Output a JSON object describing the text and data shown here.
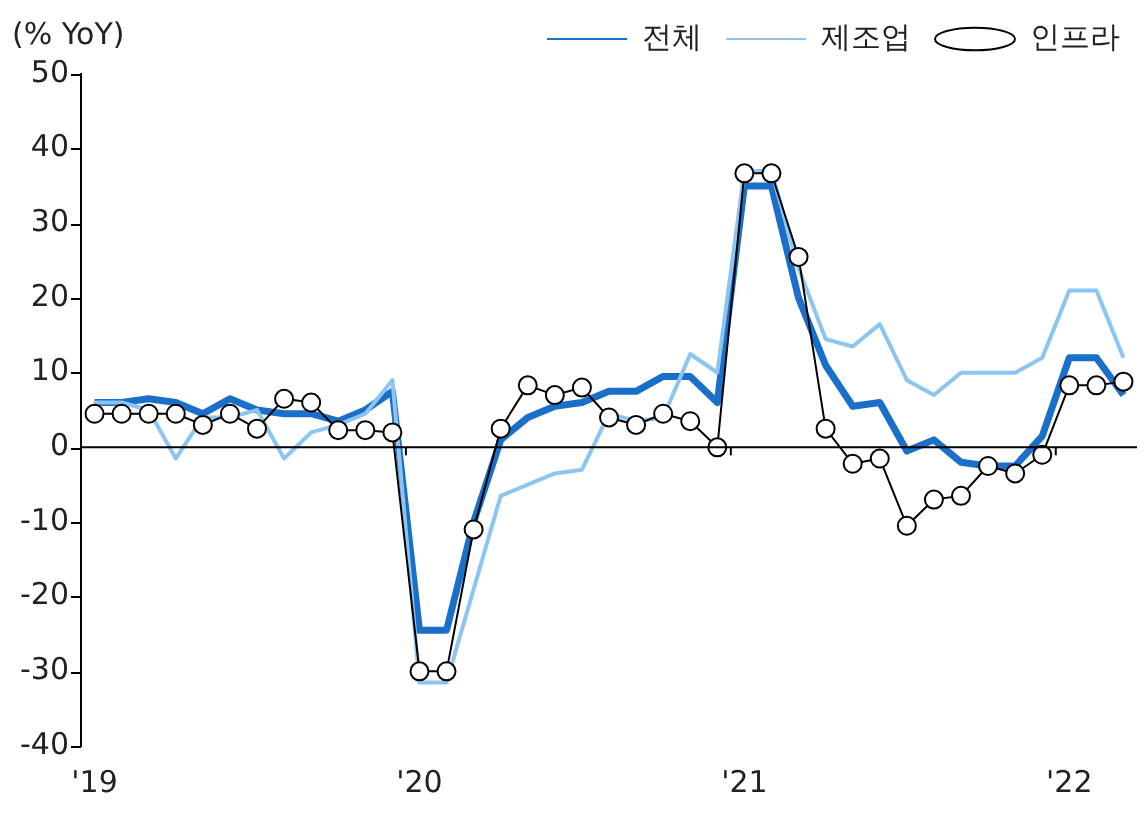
{
  "chart_data": {
    "type": "line",
    "ylabel": "(% YoY)",
    "categories": [
      "'19",
      null,
      null,
      null,
      null,
      null,
      null,
      null,
      null,
      null,
      null,
      null,
      "'20",
      null,
      null,
      null,
      null,
      null,
      null,
      null,
      null,
      null,
      null,
      null,
      "'21",
      null,
      null,
      null,
      null,
      null,
      null,
      null,
      null,
      null,
      null,
      null,
      "'22",
      null,
      null
    ],
    "series": [
      {
        "name": "전체",
        "color": "#1a6fc8",
        "marker": "none",
        "values": [
          6,
          6,
          6.5,
          6,
          4.5,
          6.5,
          5,
          4.5,
          4.5,
          3.5,
          5,
          7.5,
          -24.5,
          -24.5,
          -10,
          1,
          4,
          5.5,
          6,
          7.5,
          7.5,
          9.5,
          9.5,
          6,
          35,
          35,
          20,
          11,
          5.5,
          6,
          -0.5,
          1,
          -2,
          -2.5,
          -2.5,
          1.5,
          12,
          12,
          7
        ]
      },
      {
        "name": "제조업",
        "color": "#8cc4f2",
        "marker": "none",
        "values": [
          6,
          6,
          5,
          -1.5,
          4,
          4,
          5,
          -1.5,
          2,
          3,
          4.5,
          9,
          -31.5,
          -31.5,
          -19,
          -6.5,
          -5,
          -3.5,
          -3,
          4.5,
          3.5,
          4,
          12.5,
          10,
          37,
          37,
          24,
          14.5,
          13.5,
          16.5,
          9,
          7,
          10,
          10,
          10,
          12,
          21,
          21,
          12
        ]
      },
      {
        "name": "인프라",
        "color": "#000000",
        "marker": "circle",
        "values": [
          4.5,
          4.5,
          4.5,
          4.5,
          3,
          4.5,
          2.5,
          6.5,
          6,
          2.3,
          2.3,
          2,
          -30,
          -30,
          -11,
          2.5,
          8.3,
          7,
          8,
          4,
          3,
          4.5,
          3.5,
          0,
          36.7,
          36.7,
          25.5,
          2.5,
          -2.2,
          -1.5,
          -10.5,
          -7,
          -6.5,
          -2.5,
          -3.5,
          -1,
          8.3,
          8.3,
          8.8
        ]
      }
    ],
    "ylim": [
      -40,
      50
    ],
    "yticks": [
      -40,
      -30,
      -20,
      -10,
      0,
      10,
      20,
      30,
      40,
      50
    ],
    "ref_lines": [
      {
        "axis": "y",
        "value": 0,
        "color": "#000000"
      }
    ],
    "grid": false,
    "legend": "top right"
  }
}
